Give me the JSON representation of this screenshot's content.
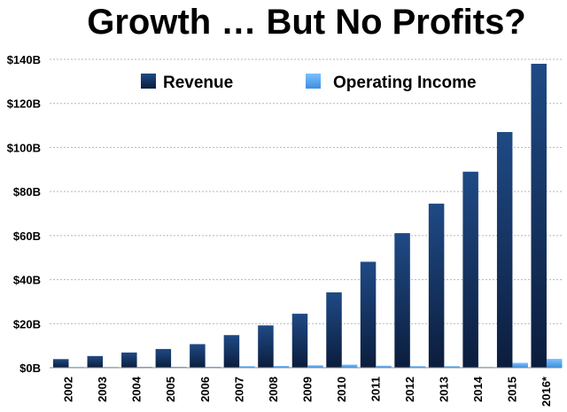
{
  "chart_data": {
    "type": "bar",
    "title": "Growth … But No Profits?",
    "categories": [
      "2002",
      "2003",
      "2004",
      "2005",
      "2006",
      "2007",
      "2008",
      "2009",
      "2010",
      "2011",
      "2012",
      "2013",
      "2014",
      "2015",
      "2016*"
    ],
    "series": [
      {
        "name": "Revenue",
        "color": "#1d3f73",
        "values": [
          3.9,
          5.3,
          6.9,
          8.5,
          10.7,
          14.8,
          19.2,
          24.5,
          34.2,
          48.1,
          61.1,
          74.5,
          89.0,
          107.0,
          138.0
        ]
      },
      {
        "name": "Operating Income",
        "color": "#62aef2",
        "values": [
          0.1,
          0.3,
          0.4,
          0.4,
          0.4,
          0.7,
          0.8,
          1.1,
          1.4,
          0.9,
          0.7,
          0.7,
          0.2,
          2.2,
          4.0
        ]
      }
    ],
    "yticks": [
      {
        "value": 0,
        "label": "$0B"
      },
      {
        "value": 20,
        "label": "$20B"
      },
      {
        "value": 40,
        "label": "$40B"
      },
      {
        "value": 60,
        "label": "$60B"
      },
      {
        "value": 80,
        "label": "$80B"
      },
      {
        "value": 100,
        "label": "$100B"
      },
      {
        "value": 120,
        "label": "$120B"
      },
      {
        "value": 140,
        "label": "$140B"
      }
    ],
    "ylim": [
      0,
      140
    ],
    "xlabel": "",
    "ylabel": "",
    "grid": true,
    "legend_position": "top"
  }
}
